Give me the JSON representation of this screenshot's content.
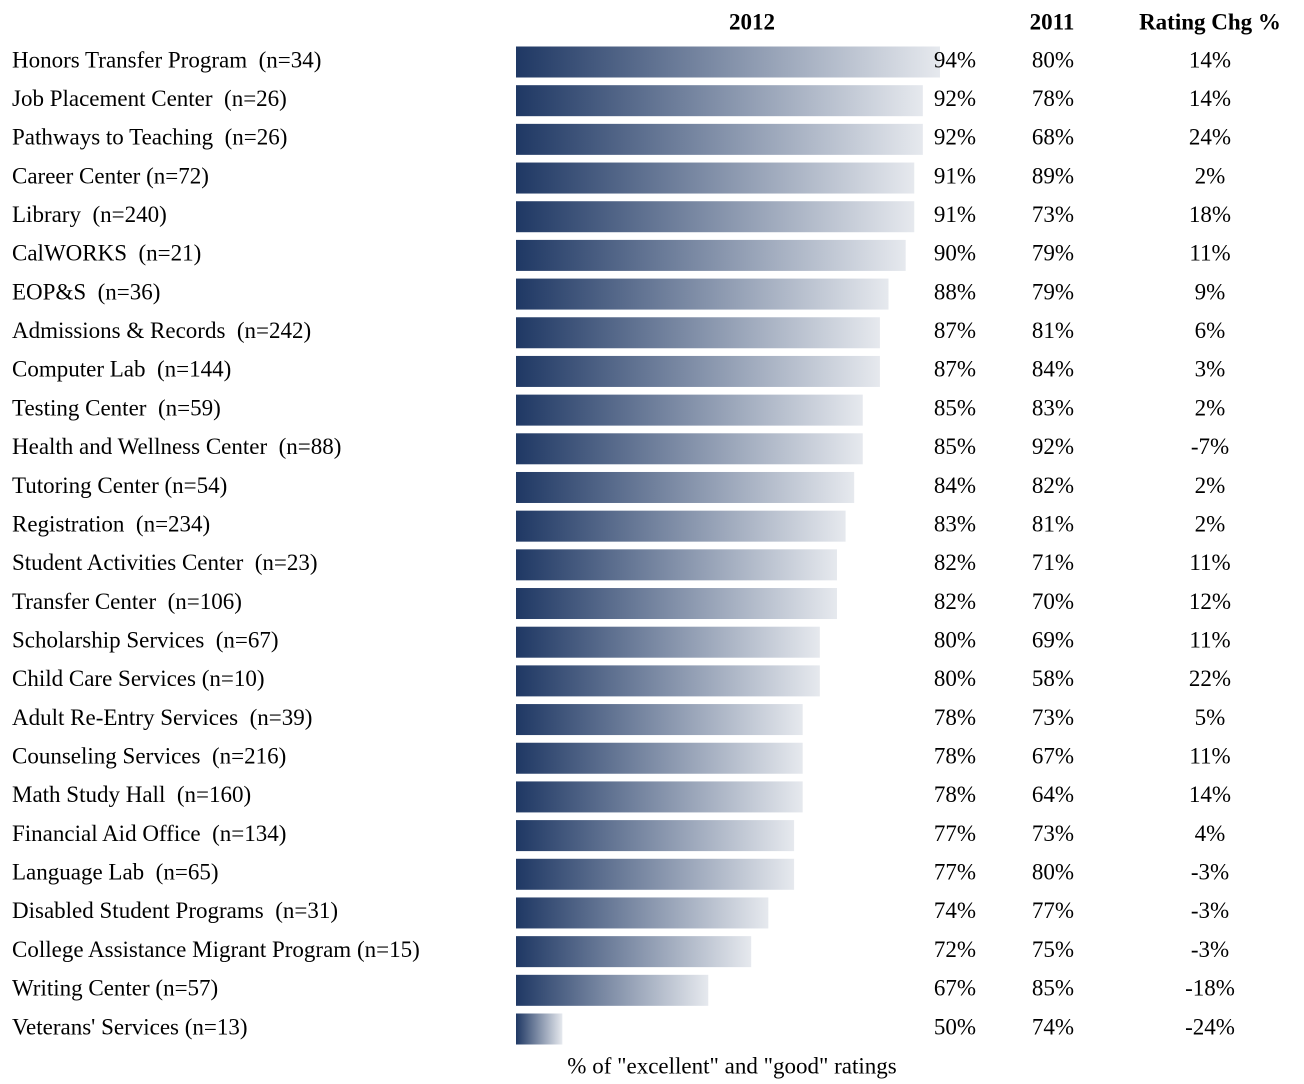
{
  "chart_data": {
    "type": "bar",
    "orientation": "horizontal",
    "xlabel": "% of \"excellent\" and \"good\" ratings",
    "xlim": [
      44.6,
      94
    ],
    "categories": [
      "Honors Transfer Program  (n=34)",
      "Job Placement Center  (n=26)",
      "Pathways to Teaching  (n=26)",
      "Career Center (n=72)",
      "Library  (n=240)",
      "CalWORKS  (n=21)",
      "EOP&S  (n=36)",
      "Admissions & Records  (n=242)",
      "Computer Lab  (n=144)",
      "Testing Center  (n=59)",
      "Health and Wellness Center  (n=88)",
      "Tutoring Center (n=54)",
      "Registration  (n=234)",
      "Student Activities Center  (n=23)",
      "Transfer Center  (n=106)",
      "Scholarship Services  (n=67)",
      "Child Care Services (n=10)",
      "Adult Re-Entry Services  (n=39)",
      "Counseling Services  (n=216)",
      "Math Study Hall  (n=160)",
      "Financial Aid Office  (n=134)",
      "Language Lab  (n=65)",
      "Disabled Student Programs  (n=31)",
      "College Assistance Migrant Program (n=15)",
      "Writing Center (n=57)",
      "Veterans' Services (n=13)"
    ],
    "series": [
      {
        "name": "2012",
        "color": "#1f3864",
        "values": [
          94,
          92,
          92,
          91,
          91,
          90,
          88,
          87,
          87,
          85,
          85,
          84,
          83,
          82,
          82,
          80,
          80,
          78,
          78,
          78,
          77,
          77,
          74,
          72,
          67,
          50
        ],
        "value_labels": [
          "94%",
          "92%",
          "92%",
          "91%",
          "91%",
          "90%",
          "88%",
          "87%",
          "87%",
          "85%",
          "85%",
          "84%",
          "83%",
          "82%",
          "82%",
          "80%",
          "80%",
          "78%",
          "78%",
          "78%",
          "77%",
          "77%",
          "74%",
          "72%",
          "67%",
          "50%"
        ]
      },
      {
        "name": "2011",
        "values": [
          80,
          78,
          68,
          89,
          73,
          79,
          79,
          81,
          84,
          83,
          92,
          82,
          81,
          71,
          70,
          69,
          58,
          73,
          67,
          64,
          73,
          80,
          77,
          75,
          85,
          74
        ],
        "value_labels": [
          "80%",
          "78%",
          "68%",
          "89%",
          "73%",
          "79%",
          "79%",
          "81%",
          "84%",
          "83%",
          "92%",
          "82%",
          "81%",
          "71%",
          "70%",
          "69%",
          "58%",
          "73%",
          "67%",
          "64%",
          "73%",
          "80%",
          "77%",
          "75%",
          "85%",
          "74%"
        ]
      },
      {
        "name": "Rating Chg %",
        "values": [
          14,
          14,
          24,
          2,
          18,
          11,
          9,
          6,
          3,
          2,
          -7,
          2,
          2,
          11,
          12,
          11,
          22,
          5,
          11,
          14,
          4,
          -3,
          -3,
          -3,
          -18,
          -24
        ],
        "value_labels": [
          "14%",
          "14%",
          "24%",
          "2%",
          "18%",
          "11%",
          "9%",
          "6%",
          "3%",
          "2%",
          "-7%",
          "2%",
          "2%",
          "11%",
          "12%",
          "11%",
          "22%",
          "5%",
          "11%",
          "14%",
          "4%",
          "-3%",
          "-3%",
          "-3%",
          "-18%",
          "-24%"
        ]
      }
    ]
  }
}
